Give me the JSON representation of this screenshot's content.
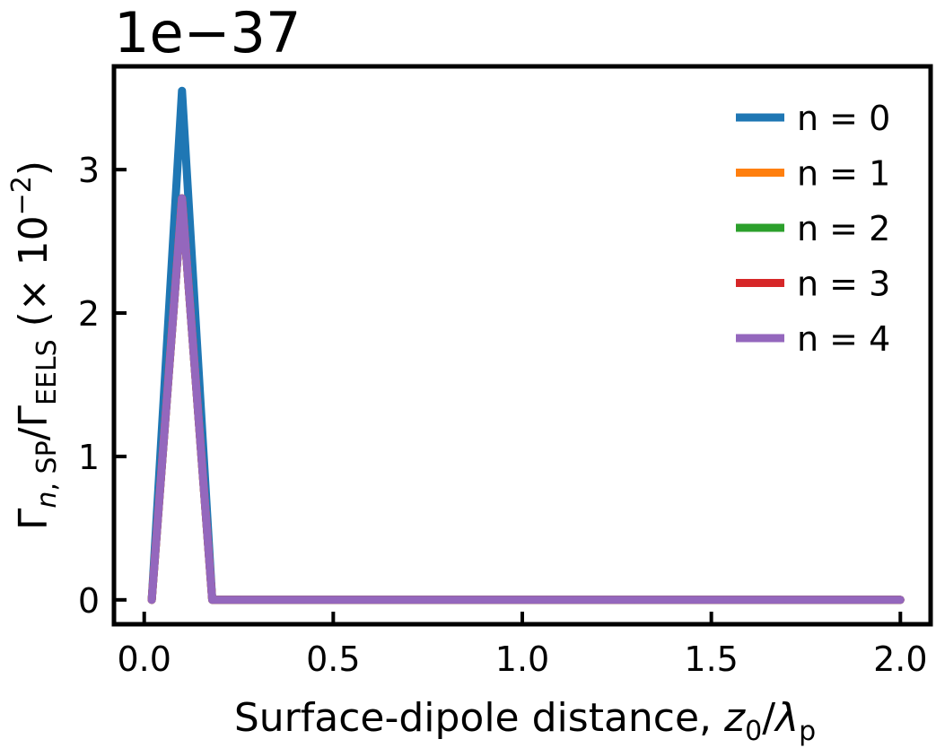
{
  "chart_data": {
    "type": "line",
    "scale_label": "1e−37",
    "xlabel": {
      "main": "Surface-dipole distance, ",
      "var": "z",
      "var_sub": "0",
      "slash": "/",
      "lambda": "λ",
      "lambda_sub": "p"
    },
    "ylabel": {
      "gamma1": "Γ",
      "sub1_italic": "n",
      "sub1_rest": ", SP",
      "slash": "/",
      "gamma2": "Γ",
      "sub2": "EELS",
      "factor": " (× 10",
      "exp": "−2",
      "close": ")"
    },
    "xlim": [
      -0.08,
      2.08
    ],
    "ylim": [
      -0.17,
      3.72
    ],
    "xticks": [
      0.0,
      0.5,
      1.0,
      1.5,
      2.0
    ],
    "xtick_labels": [
      "0.0",
      "0.5",
      "1.0",
      "1.5",
      "2.0"
    ],
    "yticks": [
      0,
      1,
      2,
      3
    ],
    "ytick_labels": [
      "0",
      "1",
      "2",
      "3"
    ],
    "grid": false,
    "legend_position": "top-right",
    "x": [
      0.02,
      0.1,
      0.18,
      0.26,
      0.34,
      0.42,
      0.5,
      0.58,
      0.66,
      0.74,
      0.82,
      0.9,
      0.98,
      1.06,
      1.14,
      1.22,
      1.3,
      1.38,
      1.46,
      1.54,
      1.62,
      1.7,
      1.78,
      1.86,
      1.94,
      2.0
    ],
    "series": [
      {
        "name": "n = 0",
        "color": "#1f77b4",
        "values": [
          0,
          3.55,
          0,
          0,
          0,
          0,
          0,
          0,
          0,
          0,
          0,
          0,
          0,
          0,
          0,
          0,
          0,
          0,
          0,
          0,
          0,
          0,
          0,
          0,
          0,
          0
        ]
      },
      {
        "name": "n = 1",
        "color": "#ff7f0e",
        "values": [
          0,
          2.8,
          0,
          0,
          0,
          0,
          0,
          0,
          0,
          0,
          0,
          0,
          0,
          0,
          0,
          0,
          0,
          0,
          0,
          0,
          0,
          0,
          0,
          0,
          0,
          0
        ]
      },
      {
        "name": "n = 2",
        "color": "#2ca02c",
        "values": [
          0,
          2.8,
          0,
          0,
          0,
          0,
          0,
          0,
          0,
          0,
          0,
          0,
          0,
          0,
          0,
          0,
          0,
          0,
          0,
          0,
          0,
          0,
          0,
          0,
          0,
          0
        ]
      },
      {
        "name": "n = 3",
        "color": "#d62728",
        "values": [
          0,
          2.8,
          0,
          0,
          0,
          0,
          0,
          0,
          0,
          0,
          0,
          0,
          0,
          0,
          0,
          0,
          0,
          0,
          0,
          0,
          0,
          0,
          0,
          0,
          0,
          0
        ]
      },
      {
        "name": "n = 4",
        "color": "#9467bd",
        "values": [
          0,
          2.8,
          0,
          0,
          0,
          0,
          0,
          0,
          0,
          0,
          0,
          0,
          0,
          0,
          0,
          0,
          0,
          0,
          0,
          0,
          0,
          0,
          0,
          0,
          0,
          0
        ]
      }
    ]
  }
}
